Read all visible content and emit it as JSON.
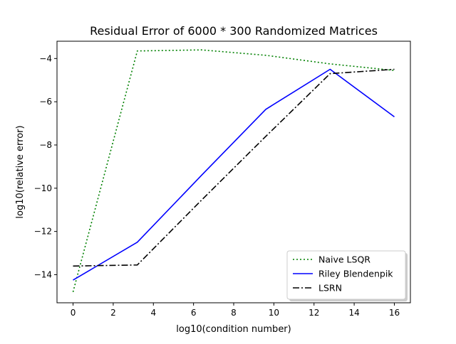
{
  "chart_data": {
    "type": "line",
    "title": "Residual Error of 6000 * 300 Randomized Matrices",
    "xlabel": "log10(condition number)",
    "ylabel": "log10(relative error)",
    "xlim": [
      -0.8,
      16.8
    ],
    "ylim": [
      -15.3,
      -3.2
    ],
    "xticks": [
      0,
      2,
      4,
      6,
      8,
      10,
      12,
      14,
      16
    ],
    "yticks": [
      -14,
      -12,
      -10,
      -8,
      -6,
      -4
    ],
    "grid": false,
    "legend_position": "lower-right",
    "series": [
      {
        "name": "Naive LSQR",
        "color": "#008000",
        "dash": "dotted",
        "x": [
          0,
          3.2,
          6.4,
          9.6,
          12.8,
          16
        ],
        "y": [
          -14.8,
          -3.65,
          -3.6,
          -3.85,
          -4.25,
          -4.55
        ]
      },
      {
        "name": "Riley Blendenpik",
        "color": "#0000ff",
        "dash": "solid",
        "x": [
          0,
          3.2,
          6.4,
          9.6,
          12.8,
          16
        ],
        "y": [
          -14.25,
          -12.5,
          -9.4,
          -6.35,
          -4.5,
          -6.7
        ]
      },
      {
        "name": "LSRN",
        "color": "#000000",
        "dash": "dashdot",
        "x": [
          0,
          3.2,
          6.4,
          9.6,
          12.8,
          16
        ],
        "y": [
          -13.6,
          -13.55,
          -10.55,
          -7.6,
          -4.7,
          -4.5
        ]
      }
    ]
  }
}
